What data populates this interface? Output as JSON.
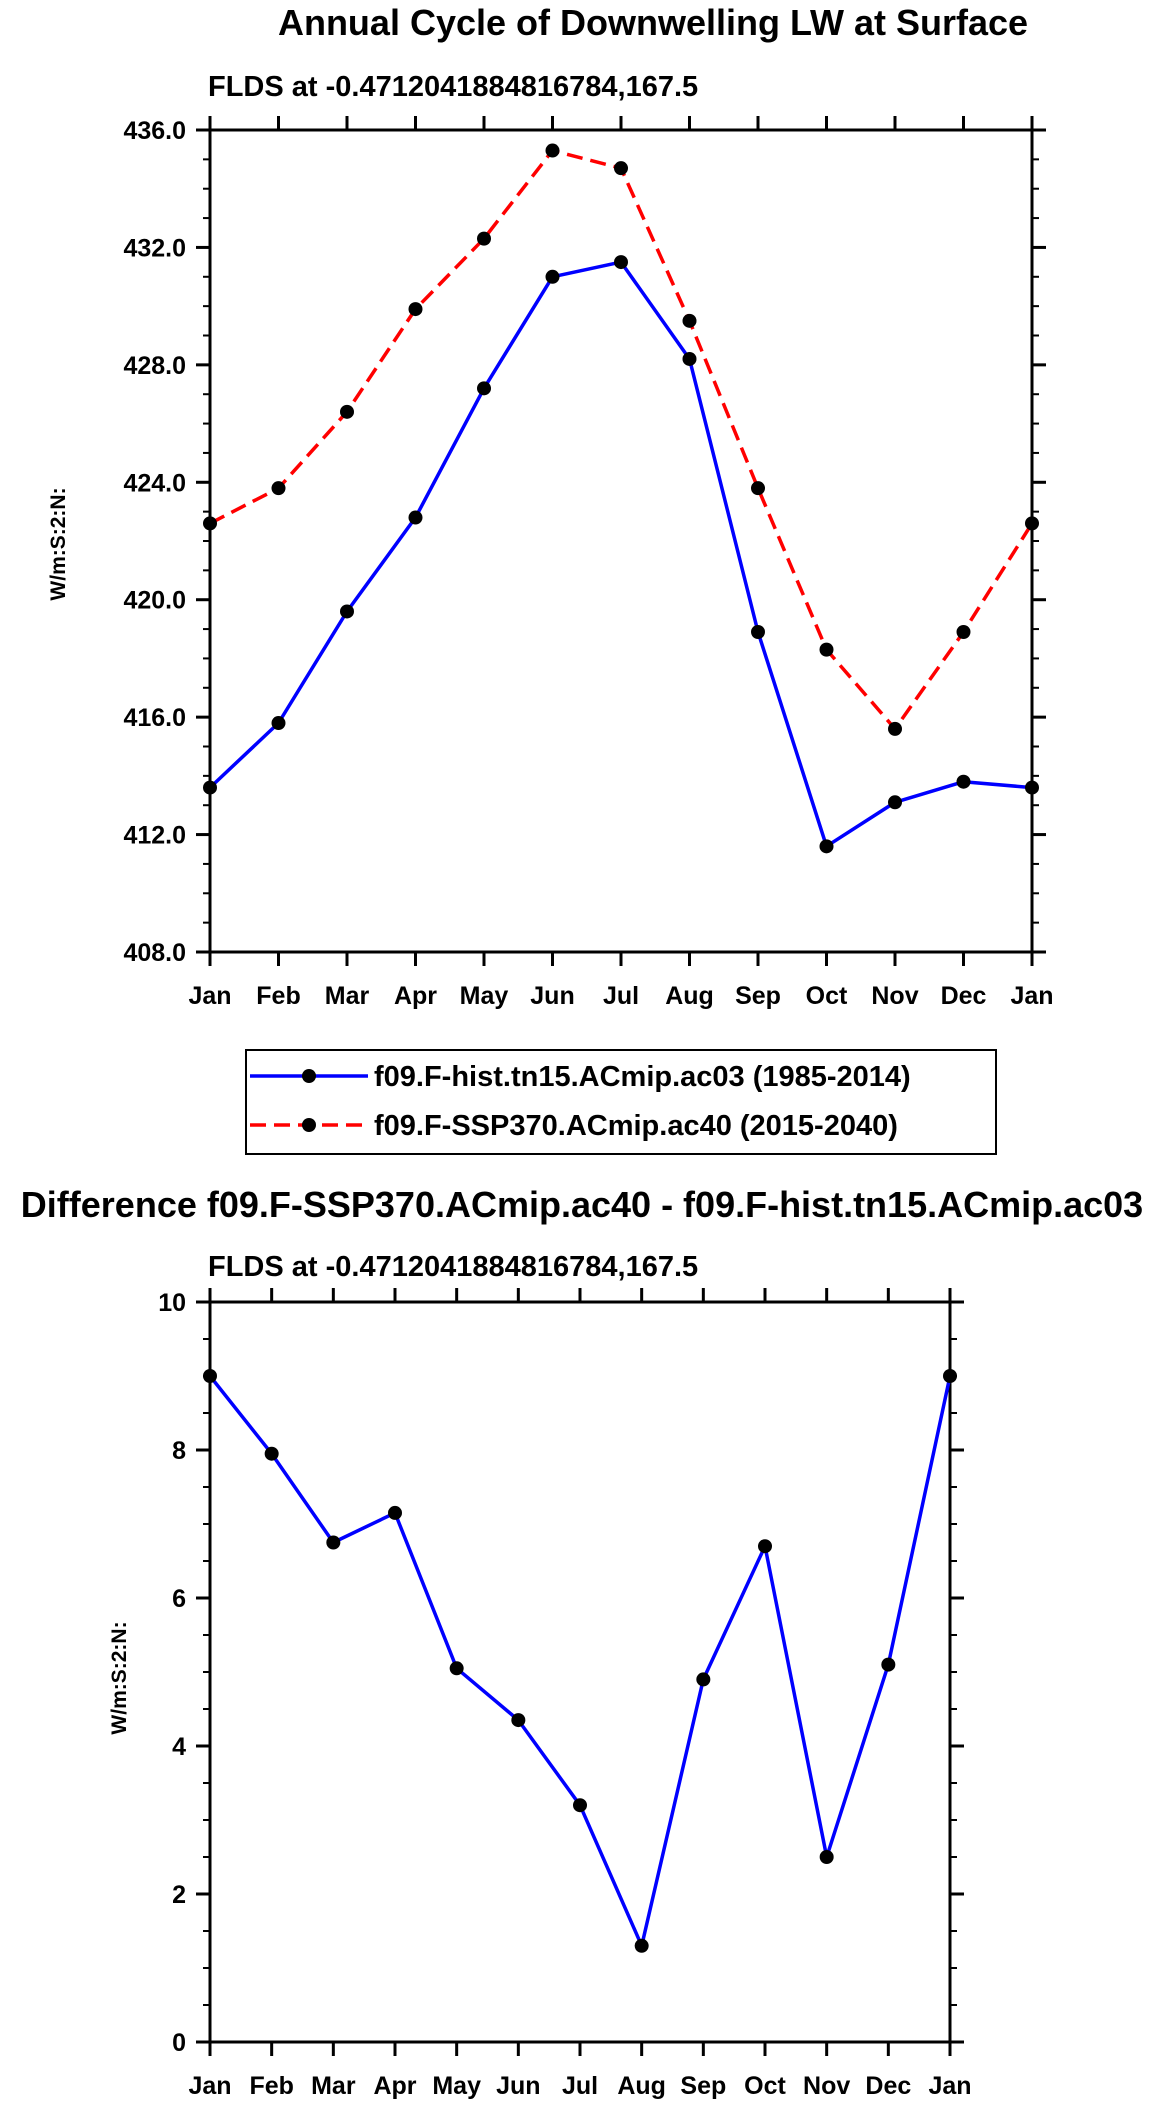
{
  "chart_data": [
    {
      "type": "line",
      "title": "Annual Cycle of Downwelling LW at Surface",
      "subtitle": "FLDS at -0.4712041884816784,167.5",
      "xlabel": "",
      "ylabel": "W/m:S:2:N:",
      "categories": [
        "Jan",
        "Feb",
        "Mar",
        "Apr",
        "May",
        "Jun",
        "Jul",
        "Aug",
        "Sep",
        "Oct",
        "Nov",
        "Dec",
        "Jan"
      ],
      "ylim": [
        408,
        436
      ],
      "yticks": [
        408,
        412,
        416,
        420,
        424,
        428,
        432,
        436
      ],
      "ytick_labels": [
        "408.0",
        "412.0",
        "416.0",
        "420.0",
        "424.0",
        "428.0",
        "432.0",
        "436.0"
      ],
      "legend_position": "below",
      "series": [
        {
          "name": "f09.F-hist.tn15.ACmip.ac03 (1985-2014)",
          "color": "#0000ff",
          "dash": "solid",
          "values": [
            413.6,
            415.8,
            419.6,
            422.8,
            427.2,
            431.0,
            431.5,
            428.2,
            418.9,
            411.6,
            413.1,
            413.8,
            413.6
          ]
        },
        {
          "name": "f09.F-SSP370.ACmip.ac40 (2015-2040)",
          "color": "#ff0000",
          "dash": "dashed",
          "values": [
            422.6,
            423.8,
            426.4,
            429.9,
            432.3,
            435.3,
            434.7,
            429.5,
            423.8,
            418.3,
            415.6,
            418.9,
            422.6
          ]
        }
      ]
    },
    {
      "type": "line",
      "title": "Difference f09.F-SSP370.ACmip.ac40 - f09.F-hist.tn15.ACmip.ac03",
      "subtitle": "FLDS at -0.4712041884816784,167.5",
      "xlabel": "",
      "ylabel": "W/m:S:2:N:",
      "categories": [
        "Jan",
        "Feb",
        "Mar",
        "Apr",
        "May",
        "Jun",
        "Jul",
        "Aug",
        "Sep",
        "Oct",
        "Nov",
        "Dec",
        "Jan"
      ],
      "ylim": [
        0,
        10
      ],
      "yticks": [
        0,
        2,
        4,
        6,
        8,
        10
      ],
      "ytick_labels": [
        "0",
        "2",
        "4",
        "6",
        "8",
        "10"
      ],
      "series": [
        {
          "name": "Difference",
          "color": "#0000ff",
          "dash": "solid",
          "values": [
            9.0,
            7.95,
            6.75,
            7.15,
            5.05,
            4.35,
            3.2,
            1.3,
            4.9,
            6.7,
            2.5,
            5.1,
            9.0
          ]
        }
      ]
    }
  ]
}
